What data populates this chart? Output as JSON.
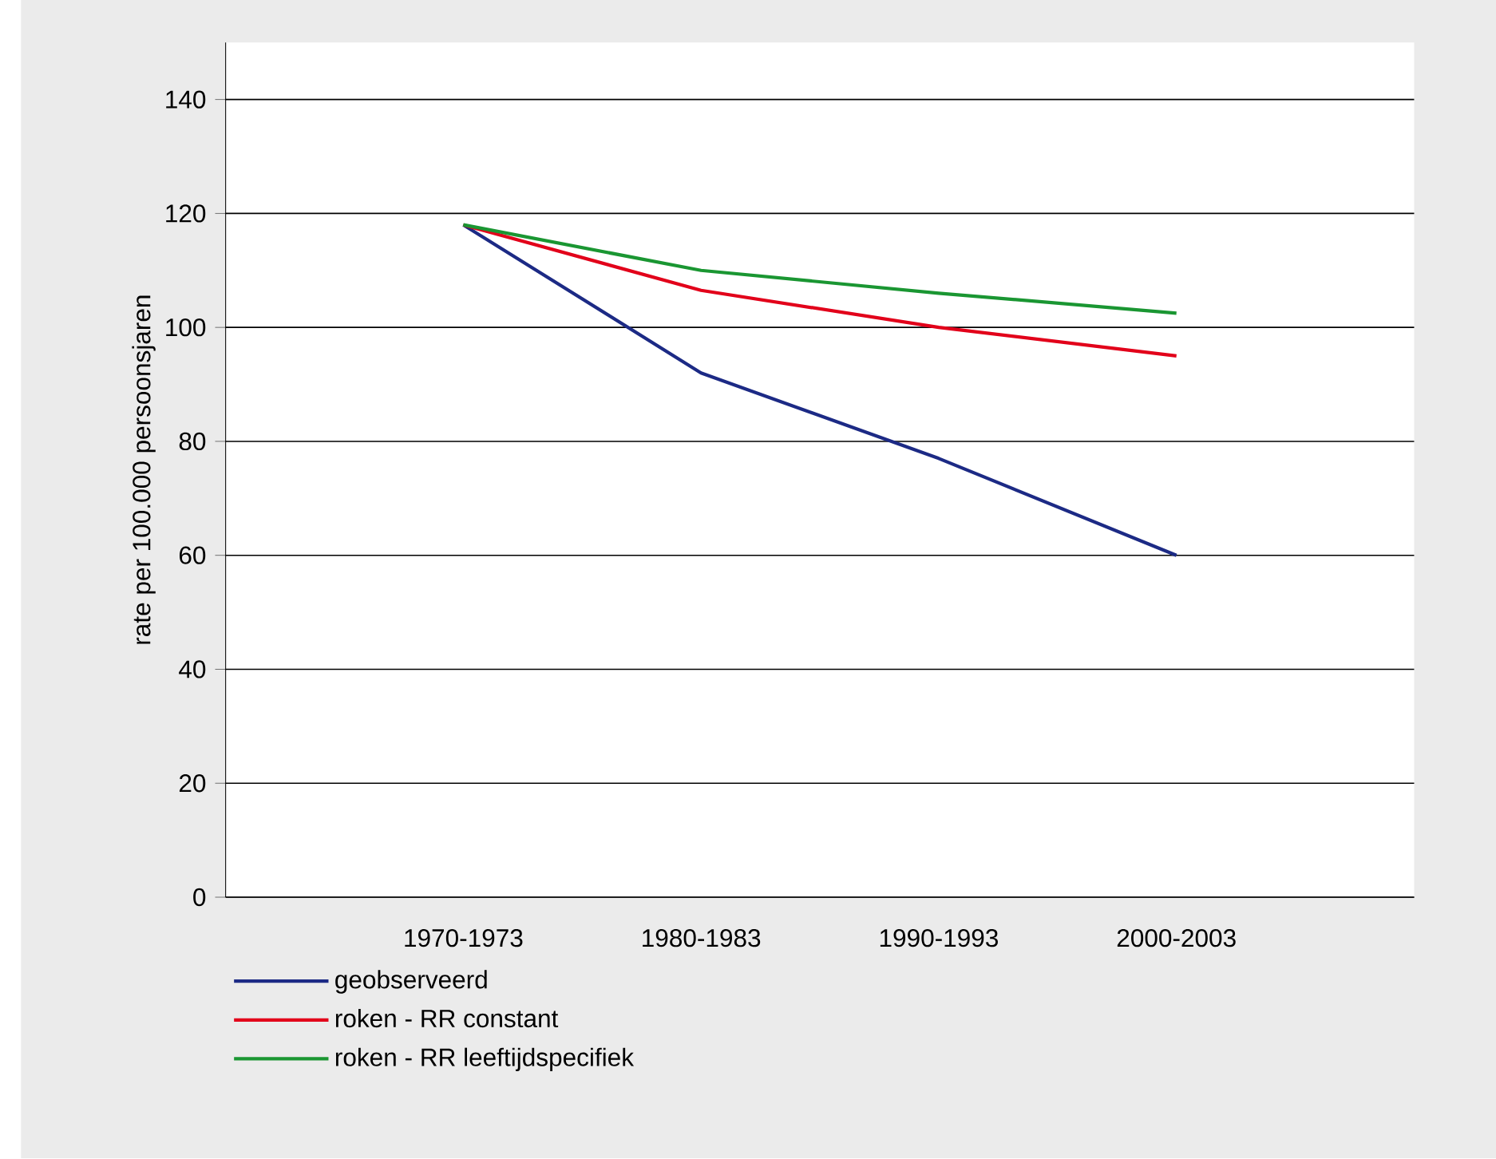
{
  "chart_data": {
    "type": "line",
    "ylabel": "rate per 100.000 persoonsjaren",
    "categories": [
      "1970-1973",
      "1980-1983",
      "1990-1993",
      "2000-2003"
    ],
    "series": [
      {
        "name": "geobserveerd",
        "color": "#1c2a85",
        "values": [
          118,
          92,
          77,
          60
        ]
      },
      {
        "name": "roken - RR constant",
        "color": "#e2001a",
        "values": [
          118,
          106.5,
          100,
          95
        ]
      },
      {
        "name": "roken - RR leeftijdspecifiek",
        "color": "#1a9632",
        "values": [
          118,
          110,
          106,
          102.5
        ]
      }
    ],
    "ylim": [
      0,
      150
    ],
    "yticks": [
      0,
      20,
      40,
      60,
      80,
      100,
      120,
      140
    ],
    "grid": "y",
    "legend": "bottom",
    "marker": "none",
    "line_style": "solid"
  }
}
